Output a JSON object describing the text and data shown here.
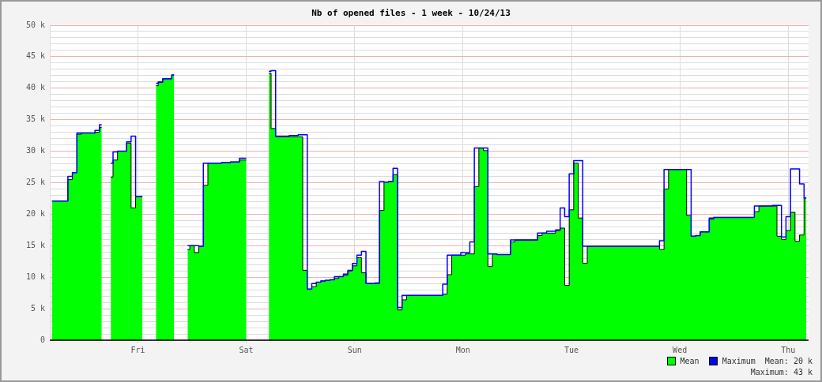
{
  "chart_data": {
    "type": "area",
    "title": "Nb of opened files - 1 week - 10/24/13",
    "categories": [
      null,
      null,
      null,
      null,
      null,
      null,
      null,
      null,
      null,
      null,
      null,
      null,
      null,
      null,
      null,
      null,
      null,
      null,
      null,
      "Fri",
      null,
      null,
      null,
      null,
      null,
      null,
      null,
      null,
      null,
      null,
      null,
      null,
      null,
      null,
      null,
      null,
      null,
      null,
      null,
      null,
      null,
      null,
      null,
      "Sat",
      null,
      null,
      null,
      null,
      null,
      null,
      null,
      null,
      null,
      null,
      null,
      null,
      null,
      null,
      null,
      null,
      null,
      null,
      null,
      null,
      null,
      null,
      null,
      "Sun",
      null,
      null,
      null,
      null,
      null,
      null,
      null,
      null,
      null,
      null,
      null,
      null,
      null,
      null,
      null,
      null,
      null,
      null,
      null,
      null,
      null,
      null,
      null,
      "Mon",
      null,
      null,
      null,
      null,
      null,
      null,
      null,
      null,
      null,
      null,
      null,
      null,
      null,
      null,
      null,
      null,
      null,
      null,
      null,
      null,
      null,
      null,
      null,
      "Tue",
      null,
      null,
      null,
      null,
      null,
      null,
      null,
      null,
      null,
      null,
      null,
      null,
      null,
      null,
      null,
      null,
      null,
      null,
      null,
      null,
      null,
      null,
      null,
      "Wed",
      null,
      null,
      null,
      null,
      null,
      null,
      null,
      null,
      null,
      null,
      null,
      null,
      null,
      null,
      null,
      null,
      null,
      null,
      null,
      null,
      null,
      null,
      null,
      "Thu",
      null,
      null,
      null,
      null
    ],
    "series": [
      {
        "name": "Mean",
        "color": "#00ff00",
        "values": [
          22.1,
          22.1,
          22.1,
          22.1,
          25.5,
          26.6,
          32.7,
          32.9,
          32.9,
          32.9,
          33.0,
          33.8,
          null,
          25.9,
          28.6,
          30.0,
          30.0,
          31.3,
          21.0,
          22.8,
          22.8,
          null,
          null,
          40.4,
          40.9,
          41.5,
          41.5,
          42.1,
          null,
          null,
          14.4,
          15.0,
          13.9,
          14.9,
          24.6,
          28.1,
          28.1,
          28.1,
          28.2,
          28.2,
          28.3,
          28.3,
          28.6,
          28.6,
          null,
          null,
          null,
          null,
          42.4,
          33.6,
          32.3,
          32.3,
          32.3,
          32.3,
          32.3,
          32.3,
          11.1,
          8.1,
          8.5,
          9.2,
          9.4,
          9.5,
          9.6,
          9.8,
          10.1,
          10.3,
          11.0,
          11.8,
          13.1,
          10.7,
          9.0,
          9.0,
          9.0,
          20.6,
          25.1,
          25.2,
          26.3,
          4.8,
          6.4,
          7.1,
          7.1,
          7.1,
          7.1,
          7.1,
          7.1,
          7.1,
          7.1,
          7.3,
          10.4,
          13.5,
          13.5,
          13.5,
          13.7,
          13.7,
          24.4,
          30.5,
          30.1,
          11.7,
          13.7,
          13.6,
          13.6,
          13.6,
          15.6,
          15.9,
          15.9,
          15.9,
          15.9,
          15.9,
          16.6,
          17.0,
          17.0,
          17.0,
          17.4,
          17.8,
          8.7,
          20.7,
          28.1,
          19.4,
          12.2,
          14.9,
          14.9,
          14.9,
          14.9,
          14.9,
          14.9,
          14.9,
          14.9,
          14.9,
          14.9,
          14.9,
          14.9,
          14.9,
          14.9,
          14.9,
          14.9,
          14.4,
          24.0,
          27.1,
          27.1,
          27.1,
          27.1,
          19.8,
          16.5,
          16.6,
          17.2,
          17.2,
          19.2,
          19.5,
          19.5,
          19.5,
          19.5,
          19.5,
          19.5,
          19.5,
          19.5,
          19.5,
          20.4,
          21.3,
          21.3,
          21.3,
          21.3,
          16.5,
          16.0,
          17.4,
          20.3,
          15.7,
          16.7,
          22.6
        ]
      },
      {
        "name": "Maximum",
        "type": "step",
        "color": "#0000ff",
        "values": [
          22.1,
          22.1,
          22.1,
          22.1,
          26.0,
          26.6,
          32.9,
          32.9,
          32.9,
          32.9,
          33.3,
          34.2,
          null,
          28.1,
          29.9,
          30.0,
          30.0,
          31.5,
          32.4,
          22.8,
          22.8,
          null,
          null,
          40.8,
          41.0,
          41.5,
          41.5,
          42.1,
          null,
          null,
          15.0,
          15.0,
          15.0,
          14.9,
          28.1,
          28.1,
          28.1,
          28.1,
          28.2,
          28.2,
          28.3,
          28.3,
          28.9,
          28.9,
          null,
          null,
          null,
          null,
          42.7,
          42.8,
          32.4,
          32.4,
          32.4,
          32.5,
          32.5,
          32.6,
          32.6,
          8.1,
          9.0,
          9.2,
          9.4,
          9.5,
          9.6,
          10.1,
          10.1,
          10.5,
          11.1,
          12.2,
          13.5,
          14.1,
          9.0,
          9.0,
          9.1,
          25.2,
          25.1,
          25.2,
          27.3,
          5.2,
          7.1,
          7.1,
          7.1,
          7.1,
          7.1,
          7.1,
          7.1,
          7.1,
          7.1,
          8.9,
          13.5,
          13.5,
          13.5,
          13.9,
          13.9,
          15.6,
          30.5,
          30.5,
          30.5,
          13.7,
          13.7,
          13.6,
          13.6,
          13.6,
          15.9,
          15.9,
          15.9,
          15.9,
          15.9,
          15.9,
          17.0,
          17.0,
          17.3,
          17.3,
          17.5,
          21.0,
          19.6,
          26.4,
          28.5,
          28.5,
          14.9,
          14.9,
          14.9,
          14.9,
          14.9,
          14.9,
          14.9,
          14.9,
          14.9,
          14.9,
          14.9,
          14.9,
          14.9,
          14.9,
          14.9,
          14.9,
          14.9,
          15.8,
          27.1,
          27.1,
          27.1,
          27.1,
          27.1,
          27.1,
          16.5,
          16.6,
          17.2,
          17.2,
          19.4,
          19.5,
          19.5,
          19.5,
          19.5,
          19.5,
          19.5,
          19.5,
          19.5,
          19.5,
          21.3,
          21.3,
          21.3,
          21.3,
          21.4,
          21.4,
          16.4,
          19.6,
          27.2,
          27.2,
          24.8,
          22.6
        ]
      }
    ],
    "ylim": [
      0,
      50
    ],
    "yticks": [
      0,
      {
        "value": 1,
        "label": null
      },
      {
        "value": 2,
        "label": null
      },
      {
        "value": 3,
        "label": null
      },
      {
        "value": 4,
        "label": null
      },
      {
        "value": 5,
        "label": "5 k"
      },
      {
        "value": 6,
        "label": null
      },
      {
        "value": 7,
        "label": null
      },
      {
        "value": 8,
        "label": null
      },
      {
        "value": 9,
        "label": null
      },
      {
        "value": 10,
        "label": "10 k"
      },
      {
        "value": 11,
        "label": null
      },
      {
        "value": 12,
        "label": null
      },
      {
        "value": 13,
        "label": null
      },
      {
        "value": 14,
        "label": null
      },
      {
        "value": 15,
        "label": "15 k"
      },
      {
        "value": 16,
        "label": null
      },
      {
        "value": 17,
        "label": null
      },
      {
        "value": 18,
        "label": null
      },
      {
        "value": 19,
        "label": null
      },
      {
        "value": 20,
        "label": "20 k"
      },
      {
        "value": 21,
        "label": null
      },
      {
        "value": 22,
        "label": null
      },
      {
        "value": 23,
        "label": null
      },
      {
        "value": 24,
        "label": null
      },
      {
        "value": 25,
        "label": "25 k"
      },
      {
        "value": 26,
        "label": null
      },
      {
        "value": 27,
        "label": null
      },
      {
        "value": 28,
        "label": null
      },
      {
        "value": 29,
        "label": null
      },
      {
        "value": 30,
        "label": "30 k"
      },
      {
        "value": 31,
        "label": null
      },
      {
        "value": 32,
        "label": null
      },
      {
        "value": 33,
        "label": null
      },
      {
        "value": 34,
        "label": null
      },
      {
        "value": 35,
        "label": "35 k"
      },
      {
        "value": 36,
        "label": null
      },
      {
        "value": 37,
        "label": null
      },
      {
        "value": 38,
        "label": null
      },
      {
        "value": 39,
        "label": null
      },
      {
        "value": 40,
        "label": "40 k"
      },
      {
        "value": 41,
        "label": null
      },
      {
        "value": 42,
        "label": null
      },
      {
        "value": 43,
        "label": null
      },
      {
        "value": 44,
        "label": null
      },
      {
        "value": 45,
        "label": "45 k"
      },
      {
        "value": 46,
        "label": null
      },
      {
        "value": 47,
        "label": null
      },
      {
        "value": 48,
        "label": null
      },
      {
        "value": 49,
        "label": null
      },
      {
        "value": 50,
        "label": "50 k"
      }
    ],
    "grid": true,
    "legend": "bottom right",
    "annotations": [
      "Mean: 20 k",
      "Maximum: 43 k"
    ]
  }
}
